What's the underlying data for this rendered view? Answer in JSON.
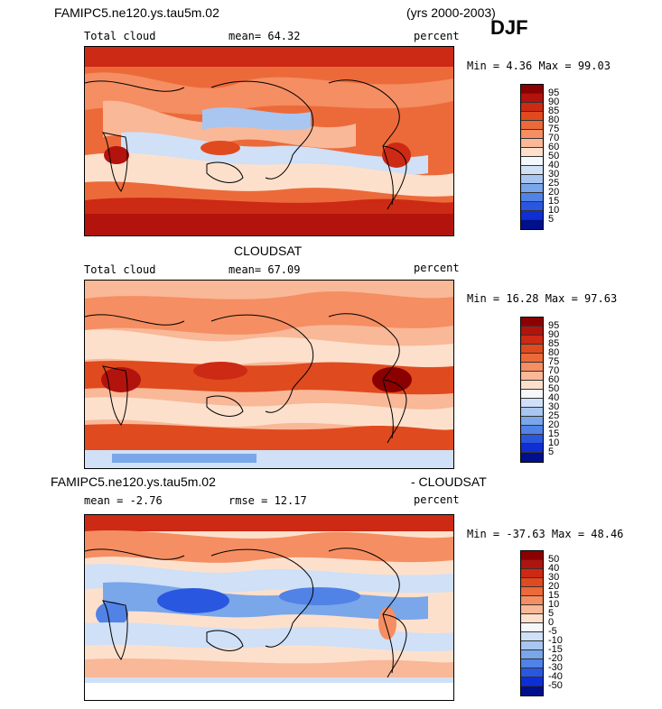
{
  "header": {
    "case_name": "FAMIPC5.ne120.ys.tau5m.02",
    "years": "(yrs 2000-2003)",
    "season": "DJF"
  },
  "panels": [
    {
      "id": "model",
      "title": "",
      "left_label": "Total cloud",
      "center_label": "mean=  64.32",
      "right_label": "percent",
      "stats": "Min =   4.36 Max =  99.03",
      "colorbar_labels": [
        "95",
        "90",
        "85",
        "80",
        "75",
        "70",
        "60",
        "50",
        "40",
        "30",
        "25",
        "20",
        "15",
        "10",
        "5"
      ],
      "colorbar_colors": [
        "#8b0000",
        "#b2130d",
        "#cc2a14",
        "#e04a1f",
        "#ec6a3a",
        "#f58e62",
        "#f9b898",
        "#fde0cc",
        "#f4f8fd",
        "#cfe0f7",
        "#a8c6f0",
        "#7aa6ea",
        "#5182e6",
        "#2a57e0",
        "#0f2fd2",
        "#00108c"
      ]
    },
    {
      "id": "obs",
      "title": "CLOUDSAT",
      "left_label": "Total cloud",
      "center_label": "mean=  67.09",
      "right_label": "percent",
      "stats": "Min =  16.28 Max =  97.63",
      "colorbar_labels": [
        "95",
        "90",
        "85",
        "80",
        "75",
        "70",
        "60",
        "50",
        "40",
        "30",
        "25",
        "20",
        "15",
        "10",
        "5"
      ],
      "colorbar_colors": [
        "#8b0000",
        "#b2130d",
        "#cc2a14",
        "#e04a1f",
        "#ec6a3a",
        "#f58e62",
        "#f9b898",
        "#fde0cc",
        "#f4f8fd",
        "#cfe0f7",
        "#a8c6f0",
        "#7aa6ea",
        "#5182e6",
        "#2a57e0",
        "#0f2fd2",
        "#00108c"
      ]
    },
    {
      "id": "diff",
      "title_left": "FAMIPC5.ne120.ys.tau5m.02",
      "title_right": "- CLOUDSAT",
      "left_label": "mean =   -2.76",
      "center_label": "rmse =   12.17",
      "right_label": "percent",
      "stats": "Min = -37.63 Max =  48.46",
      "colorbar_labels": [
        "50",
        "40",
        "30",
        "20",
        "15",
        "10",
        "5",
        "0",
        "-5",
        "-10",
        "-15",
        "-20",
        "-30",
        "-40",
        "-50"
      ],
      "colorbar_colors": [
        "#8b0000",
        "#b2130d",
        "#cc2a14",
        "#e04a1f",
        "#ec6a3a",
        "#f58e62",
        "#f9b898",
        "#fde0cc",
        "#f4f8fd",
        "#cfe0f7",
        "#a8c6f0",
        "#7aa6ea",
        "#5182e6",
        "#2a57e0",
        "#0f2fd2",
        "#00108c"
      ]
    }
  ]
}
